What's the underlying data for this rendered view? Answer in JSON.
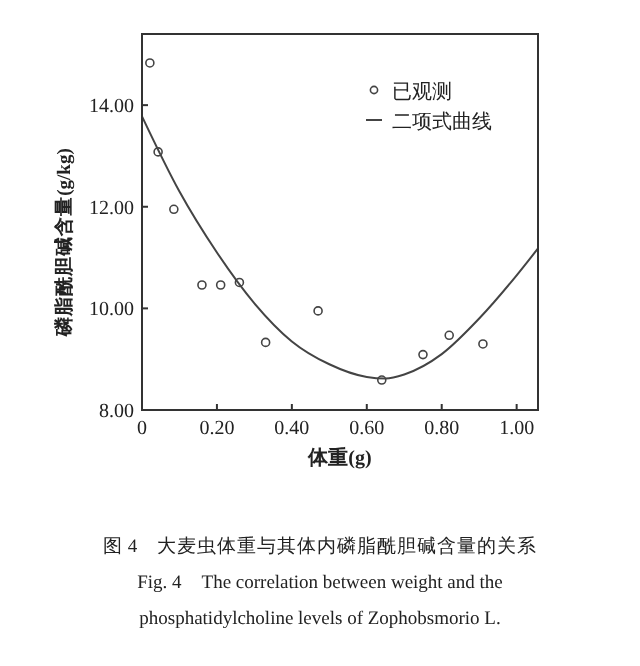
{
  "chart_data": {
    "type": "scatter",
    "xlabel": "体重(g)",
    "ylabel": "磷脂酰胆碱含量(g/kg)",
    "xlim": [
      0,
      1.057
    ],
    "ylim": [
      8,
      15.4
    ],
    "xticks": [
      0,
      {
        "value": 0.2,
        "label": "0.20"
      },
      {
        "value": 0.4,
        "label": "0.40"
      },
      {
        "value": 0.6,
        "label": "0.60"
      },
      {
        "value": 0.8,
        "label": "0.80"
      },
      {
        "value": 1,
        "label": "1.00"
      }
    ],
    "yticks": [
      {
        "value": 8,
        "label": "8.00"
      },
      {
        "value": 10,
        "label": "10.00"
      },
      {
        "value": 12,
        "label": "12.00"
      },
      {
        "value": 14,
        "label": "14.00"
      }
    ],
    "series": [
      {
        "name": "已观测",
        "color": "#444444",
        "marker": "circle",
        "x": [
          0.021,
          0.043,
          0.085,
          0.16,
          0.21,
          0.26,
          0.33,
          0.47,
          0.64,
          0.75,
          0.82,
          0.91
        ],
        "values": [
          14.83,
          13.08,
          11.95,
          10.46,
          10.46,
          10.51,
          9.33,
          9.95,
          8.59,
          9.09,
          9.47,
          9.3
        ]
      },
      {
        "name": "二项式曲线",
        "type": "line",
        "color": "#444444",
        "line_style": "solid",
        "marker": "none",
        "x": [
          0,
          0.1,
          0.2,
          0.3,
          0.4,
          0.5,
          0.6,
          0.65,
          0.7,
          0.8,
          0.9,
          1.0,
          1.057
        ],
        "values": [
          13.78,
          12.3,
          11.1,
          10.1,
          9.35,
          8.9,
          8.65,
          8.62,
          8.7,
          9.1,
          9.8,
          10.65,
          11.18
        ]
      }
    ],
    "legend": "top right",
    "grid": false,
    "annotations": [
      "图 4　大麦虫体重与其体内磷脂酰胆碱含量的关系",
      "Fig. 4　The correlation between weight and the",
      "phosphatidylcholine levels of Zophobsmorio L."
    ]
  }
}
